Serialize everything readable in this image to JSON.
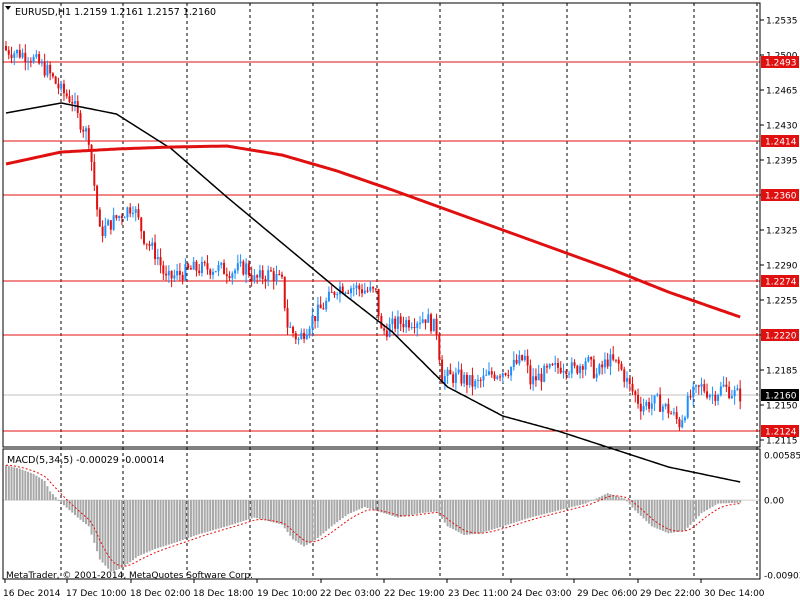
{
  "header": {
    "symbol_line": "EURUSD,H1  1.2159 1.2161 1.2157 1.2160",
    "macd_line": "MACD(5,34,5) -0.00029 -0.00014",
    "copyright": "MetaTrader, © 2001-2014, MetaQuotes Software Corp."
  },
  "colors": {
    "bull": "#1e8fff",
    "bear": "#e01010",
    "level": "#e01010",
    "ma_fast": "#000000",
    "ma_slow": "#e01010",
    "grid": "#000000",
    "histogram": "#a8a8a8",
    "signal": "#e01010"
  },
  "chart_data": [
    {
      "type": "candlestick",
      "title": "EURUSD,H1  1.2159 1.2161 1.2157 1.2160",
      "ylim": [
        1.2108,
        1.2552
      ],
      "y_ticks": [
        "1.2535",
        "1.2500",
        "1.2465",
        "1.2430",
        "1.2395",
        "1.2360",
        "1.2325",
        "1.2290",
        "1.2255",
        "1.2220",
        "1.2185",
        "1.2150",
        "1.2115"
      ],
      "x_labels": [
        "16 Dec 2014",
        "17 Dec 10:00",
        "18 Dec 02:00",
        "18 Dec 18:00",
        "19 Dec 10:00",
        "22 Dec 03:00",
        "22 Dec 19:00",
        "23 Dec 11:00",
        "24 Dec 03:00",
        "29 Dec 06:00",
        "29 Dec 22:00",
        "30 Dec 14:00"
      ],
      "grid": "vertical dotted",
      "horizontal_levels": [
        1.2493,
        1.2414,
        1.236,
        1.2274,
        1.222,
        1.2124
      ],
      "current_price": 1.216,
      "series_close_anchors": [
        [
          0,
          1.2505
        ],
        [
          8,
          1.25
        ],
        [
          15,
          1.2484
        ],
        [
          20,
          1.2464
        ],
        [
          24,
          1.2455
        ],
        [
          26,
          1.2438
        ],
        [
          30,
          1.2418
        ],
        [
          34,
          1.2322
        ],
        [
          40,
          1.2337
        ],
        [
          46,
          1.235
        ],
        [
          50,
          1.2318
        ],
        [
          55,
          1.2298
        ],
        [
          58,
          1.2275
        ],
        [
          62,
          1.228
        ],
        [
          68,
          1.2286
        ],
        [
          75,
          1.2287
        ],
        [
          82,
          1.2284
        ],
        [
          87,
          1.2288
        ],
        [
          90,
          1.2275
        ],
        [
          96,
          1.2282
        ],
        [
          100,
          1.2272
        ],
        [
          102,
          1.223
        ],
        [
          106,
          1.2215
        ],
        [
          110,
          1.2233
        ],
        [
          116,
          1.2252
        ],
        [
          120,
          1.2268
        ],
        [
          125,
          1.2268
        ],
        [
          130,
          1.2265
        ],
        [
          134,
          1.2262
        ],
        [
          136,
          1.2223
        ],
        [
          142,
          1.2232
        ],
        [
          148,
          1.2235
        ],
        [
          152,
          1.2238
        ],
        [
          156,
          1.2225
        ],
        [
          158,
          1.2178
        ],
        [
          164,
          1.2178
        ],
        [
          170,
          1.217
        ],
        [
          176,
          1.2181
        ],
        [
          182,
          1.2186
        ],
        [
          188,
          1.2197
        ],
        [
          190,
          1.2173
        ],
        [
          196,
          1.2183
        ],
        [
          202,
          1.219
        ],
        [
          206,
          1.2185
        ],
        [
          210,
          1.2196
        ],
        [
          214,
          1.218
        ],
        [
          218,
          1.2195
        ],
        [
          222,
          1.219
        ],
        [
          226,
          1.2168
        ],
        [
          230,
          1.215
        ],
        [
          236,
          1.2153
        ],
        [
          240,
          1.2145
        ],
        [
          244,
          1.2132
        ],
        [
          248,
          1.2158
        ],
        [
          252,
          1.2168
        ],
        [
          256,
          1.216
        ],
        [
          260,
          1.2168
        ],
        [
          264,
          1.2161
        ],
        [
          266,
          1.216
        ]
      ],
      "moving_averages": [
        {
          "color": "#000000",
          "points": [
            [
              0,
              1.2442
            ],
            [
              20,
              1.2452
            ],
            [
              40,
              1.2441
            ],
            [
              60,
              1.2406
            ],
            [
              80,
              1.2358
            ],
            [
              100,
              1.2312
            ],
            [
              120,
              1.2266
            ],
            [
              140,
              1.2223
            ],
            [
              160,
              1.2168
            ],
            [
              180,
              1.2139
            ],
            [
              200,
              1.2124
            ],
            [
              220,
              1.2106
            ],
            [
              240,
              1.2088
            ],
            [
              266,
              1.2073
            ]
          ]
        },
        {
          "color": "#e01010",
          "points": [
            [
              0,
              1.2391
            ],
            [
              20,
              1.2403
            ],
            [
              40,
              1.2406
            ],
            [
              60,
              1.2408
            ],
            [
              80,
              1.2409
            ],
            [
              100,
              1.24
            ],
            [
              120,
              1.2384
            ],
            [
              140,
              1.2365
            ],
            [
              160,
              1.2345
            ],
            [
              180,
              1.2325
            ],
            [
              200,
              1.2305
            ],
            [
              220,
              1.2285
            ],
            [
              240,
              1.2263
            ],
            [
              266,
              1.2238
            ]
          ]
        }
      ]
    },
    {
      "type": "bar",
      "title": "MACD(5,34,5) -0.00029 -0.00014",
      "ylim": [
        -0.00903,
        0.00585
      ],
      "y_ticks": [
        "0.00585",
        "0.00",
        "-0.00903"
      ],
      "histogram_anchors": [
        [
          0,
          0.004
        ],
        [
          5,
          0.0036
        ],
        [
          10,
          0.003
        ],
        [
          14,
          0.0022
        ],
        [
          16,
          0.001
        ],
        [
          20,
          -0.0003
        ],
        [
          26,
          -0.002
        ],
        [
          30,
          -0.003
        ],
        [
          34,
          -0.0068
        ],
        [
          38,
          -0.0082
        ],
        [
          42,
          -0.0078
        ],
        [
          48,
          -0.0064
        ],
        [
          54,
          -0.0056
        ],
        [
          62,
          -0.0048
        ],
        [
          70,
          -0.0039
        ],
        [
          80,
          -0.003
        ],
        [
          90,
          -0.002
        ],
        [
          100,
          -0.0028
        ],
        [
          104,
          -0.0045
        ],
        [
          108,
          -0.0053
        ],
        [
          112,
          -0.0046
        ],
        [
          118,
          -0.003
        ],
        [
          124,
          -0.0016
        ],
        [
          130,
          -0.0008
        ],
        [
          136,
          -0.0014
        ],
        [
          142,
          -0.002
        ],
        [
          150,
          -0.0015
        ],
        [
          156,
          -0.0013
        ],
        [
          160,
          -0.003
        ],
        [
          166,
          -0.004
        ],
        [
          172,
          -0.0038
        ],
        [
          180,
          -0.003
        ],
        [
          190,
          -0.002
        ],
        [
          200,
          -0.0012
        ],
        [
          210,
          -0.0004
        ],
        [
          218,
          0.0008
        ],
        [
          224,
          0.0002
        ],
        [
          228,
          -0.0012
        ],
        [
          234,
          -0.003
        ],
        [
          240,
          -0.0038
        ],
        [
          246,
          -0.0035
        ],
        [
          252,
          -0.0015
        ],
        [
          258,
          -0.0004
        ],
        [
          266,
          -0.0003
        ]
      ],
      "signal_lag": 4
    }
  ]
}
